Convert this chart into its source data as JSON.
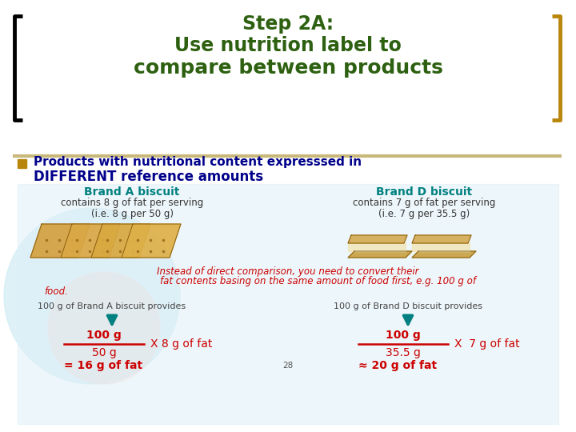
{
  "title_line1": "Step 2A:",
  "title_line2": "Use nutrition label to",
  "title_line3": "compare between products",
  "title_color": "#2d6010",
  "bullet_color": "#b8860b",
  "bullet_text_line1": "Products with nutritional content expresssed in",
  "bullet_text_line2": "DIFFERENT reference amounts",
  "bullet_text_color": "#00008B",
  "brand_a_label": "Brand A biscuit",
  "brand_d_label": "Brand D biscuit",
  "brand_label_color": "#008080",
  "brand_a_line1": "contains 8 g of fat per serving",
  "brand_a_line2": "(i.e. 8 g per 50 g)",
  "brand_d_line1": "contains 7 g of fat per serving",
  "brand_d_line2": "(i.e. 7 g per 35.5 g)",
  "product_text_color": "#333333",
  "middle_line1": "Instead of direct comparison, you need to convert their",
  "middle_line2": "fat contents basing on the same amount of food first, e.g. 100 g of",
  "middle_line3": "food.",
  "middle_text_color": "#cc0000",
  "brand_a_provides": "100 g of Brand A biscuit provides",
  "brand_d_provides": "100 g of Brand D biscuit provides",
  "provides_text_color": "#444444",
  "formula_a_num": "100 g",
  "formula_a_den": "50 g",
  "formula_a_mult": "X 8 g of fat",
  "formula_a_result": "= 16 g of fat",
  "formula_d_num": "100 g",
  "formula_d_den": "35.5 g",
  "formula_d_mult": "X  7 g of fat",
  "formula_d_result": "≈ 20 g of fat",
  "formula_color": "#cc0000",
  "arrow_color": "#008080",
  "page_number": "28",
  "bg_color": "#ffffff",
  "bracket_left_color": "#000000",
  "bracket_right_color": "#b8860b",
  "separator_color": "#c8b87a",
  "light_blue_bg": "#dff0f7",
  "circle1_color": "#d0ecf5",
  "circle2_color": "#f5d8d0"
}
